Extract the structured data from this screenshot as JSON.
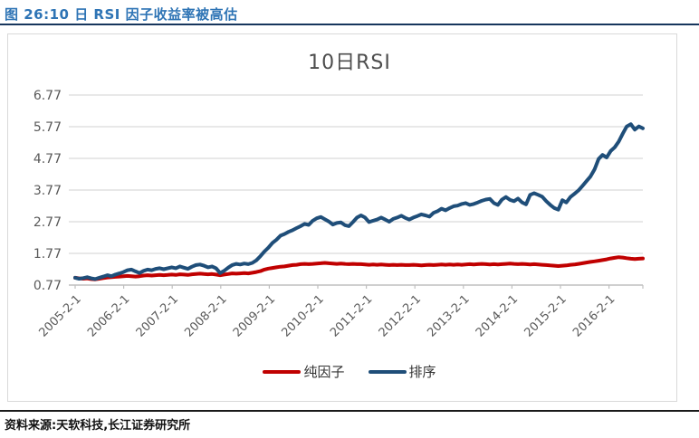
{
  "header": {
    "title": "图 26:10 日 RSI 因子收益率被高估"
  },
  "footer": {
    "source": "资料来源:天软科技,长江证券研究所"
  },
  "colors": {
    "caption_text": "#2E74B5",
    "caption_rule": "#17365D",
    "panel_frame": "#D9D9D9",
    "grid": "#D9D9D9",
    "axis": "#BFBFBF",
    "tick_text": "#595959",
    "chart_title_text": "#4D4D4D",
    "legend_text": "#333333",
    "footer_text": "#111111",
    "series_pure_factor": "#C00000",
    "series_rank": "#1F4E79"
  },
  "chart_data": {
    "type": "line",
    "title": "10日RSI",
    "xlabel": "",
    "ylabel": "",
    "ylim": [
      0.77,
      6.77
    ],
    "y_ticks": [
      0.77,
      1.77,
      2.77,
      3.77,
      4.77,
      5.77,
      6.77
    ],
    "grid": true,
    "legend_position": "bottom",
    "x_tick_labels": [
      "2005-2-1",
      "2006-2-1",
      "2007-2-1",
      "2008-2-1",
      "2009-2-1",
      "2010-2-1",
      "2011-2-1",
      "2012-2-1",
      "2013-2-1",
      "2014-2-1",
      "2015-2-1",
      "2016-2-1"
    ],
    "x_frequency": "monthly from 2005-02 to 2016-11",
    "series": [
      {
        "name": "纯因子",
        "slug": "pure-factor",
        "color": "#C00000",
        "values": [
          1.0,
          0.98,
          0.97,
          0.98,
          0.96,
          0.95,
          0.97,
          0.99,
          1.01,
          1.02,
          1.03,
          1.04,
          1.05,
          1.06,
          1.05,
          1.04,
          1.05,
          1.07,
          1.08,
          1.07,
          1.08,
          1.09,
          1.08,
          1.09,
          1.1,
          1.09,
          1.11,
          1.1,
          1.09,
          1.11,
          1.12,
          1.13,
          1.12,
          1.11,
          1.12,
          1.1,
          1.08,
          1.1,
          1.12,
          1.14,
          1.13,
          1.14,
          1.15,
          1.14,
          1.16,
          1.18,
          1.21,
          1.26,
          1.29,
          1.31,
          1.33,
          1.35,
          1.36,
          1.38,
          1.4,
          1.41,
          1.43,
          1.44,
          1.43,
          1.44,
          1.45,
          1.46,
          1.47,
          1.46,
          1.45,
          1.44,
          1.45,
          1.44,
          1.43,
          1.44,
          1.43,
          1.43,
          1.42,
          1.41,
          1.42,
          1.41,
          1.42,
          1.41,
          1.4,
          1.41,
          1.4,
          1.41,
          1.4,
          1.4,
          1.41,
          1.4,
          1.39,
          1.4,
          1.41,
          1.4,
          1.41,
          1.42,
          1.41,
          1.42,
          1.41,
          1.42,
          1.41,
          1.42,
          1.43,
          1.42,
          1.43,
          1.44,
          1.43,
          1.42,
          1.43,
          1.42,
          1.43,
          1.44,
          1.45,
          1.44,
          1.43,
          1.44,
          1.43,
          1.42,
          1.43,
          1.42,
          1.41,
          1.4,
          1.39,
          1.38,
          1.37,
          1.38,
          1.39,
          1.41,
          1.42,
          1.44,
          1.46,
          1.48,
          1.5,
          1.52,
          1.54,
          1.56,
          1.58,
          1.61,
          1.63,
          1.65,
          1.64,
          1.62,
          1.6,
          1.59,
          1.6,
          1.61
        ]
      },
      {
        "name": "排序",
        "slug": "rank",
        "color": "#1F4E79",
        "values": [
          1.0,
          0.97,
          0.99,
          1.02,
          0.98,
          0.96,
          1.0,
          1.04,
          1.08,
          1.05,
          1.1,
          1.14,
          1.18,
          1.24,
          1.26,
          1.2,
          1.15,
          1.22,
          1.26,
          1.24,
          1.28,
          1.3,
          1.27,
          1.3,
          1.33,
          1.3,
          1.36,
          1.32,
          1.28,
          1.35,
          1.4,
          1.42,
          1.38,
          1.33,
          1.36,
          1.3,
          1.15,
          1.22,
          1.32,
          1.4,
          1.44,
          1.42,
          1.45,
          1.43,
          1.47,
          1.55,
          1.68,
          1.83,
          1.95,
          2.1,
          2.2,
          2.33,
          2.38,
          2.45,
          2.5,
          2.57,
          2.63,
          2.7,
          2.67,
          2.8,
          2.88,
          2.92,
          2.85,
          2.78,
          2.68,
          2.73,
          2.75,
          2.66,
          2.63,
          2.76,
          2.9,
          2.97,
          2.9,
          2.76,
          2.8,
          2.84,
          2.9,
          2.84,
          2.77,
          2.86,
          2.9,
          2.96,
          2.89,
          2.84,
          2.9,
          2.95,
          3.0,
          2.97,
          2.93,
          3.05,
          3.1,
          3.18,
          3.13,
          3.2,
          3.26,
          3.28,
          3.33,
          3.36,
          3.3,
          3.33,
          3.38,
          3.43,
          3.47,
          3.49,
          3.36,
          3.3,
          3.47,
          3.55,
          3.46,
          3.42,
          3.5,
          3.38,
          3.32,
          3.62,
          3.67,
          3.62,
          3.56,
          3.42,
          3.3,
          3.2,
          3.15,
          3.45,
          3.38,
          3.55,
          3.65,
          3.76,
          3.9,
          4.05,
          4.2,
          4.42,
          4.75,
          4.88,
          4.8,
          5.0,
          5.12,
          5.3,
          5.55,
          5.78,
          5.85,
          5.68,
          5.78,
          5.72
        ]
      }
    ]
  }
}
